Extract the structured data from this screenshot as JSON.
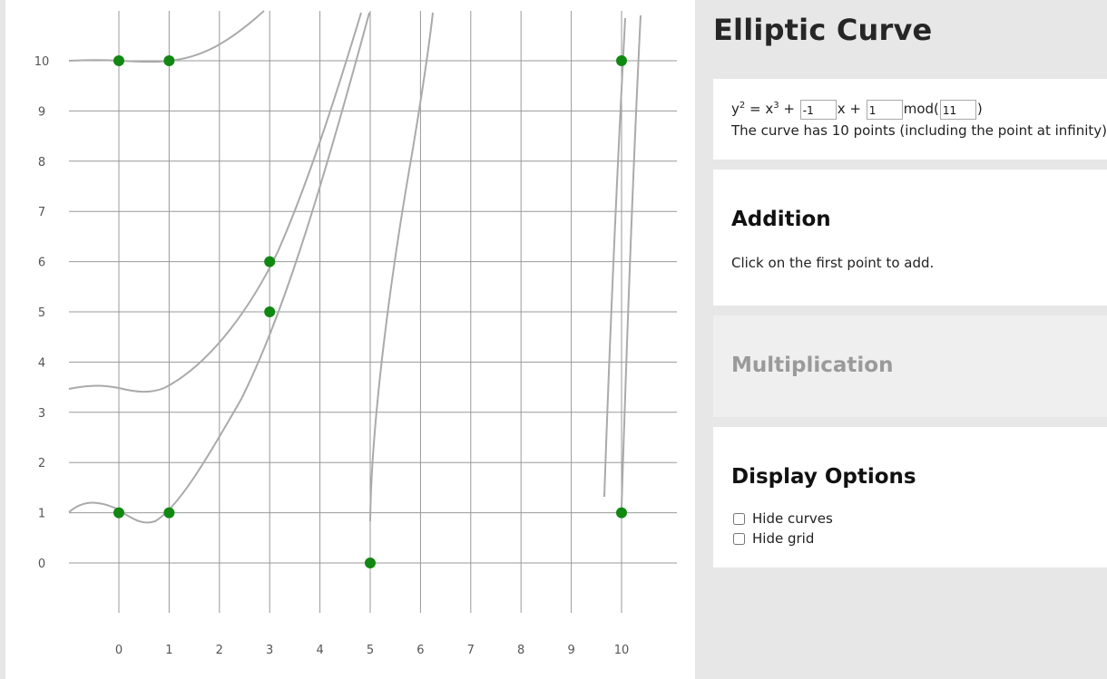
{
  "app": {
    "title": "Elliptic Curve"
  },
  "equation": {
    "lhs": "y",
    "lhs_exp": "2",
    "equals": " = x",
    "x_exp": "3",
    "plus1": " + ",
    "a_value": "-1",
    "x_plus": "x + ",
    "b_value": "1",
    "mod_open": "mod(",
    "p_value": "11",
    "mod_close": ")",
    "summary": "The curve has 10 points (including the point at infinity)."
  },
  "addition": {
    "title": "Addition",
    "hint": "Click on the first point to add."
  },
  "multiplication": {
    "title": "Multiplication"
  },
  "display_options": {
    "title": "Display Options",
    "hide_curves_label": "Hide curves",
    "hide_grid_label": "Hide grid",
    "hide_curves_checked": false,
    "hide_grid_checked": false
  },
  "plot": {
    "x_ticks": [
      "0",
      "1",
      "2",
      "3",
      "4",
      "5",
      "6",
      "7",
      "8",
      "9",
      "10"
    ],
    "y_ticks": [
      "0",
      "1",
      "2",
      "3",
      "4",
      "5",
      "6",
      "7",
      "8",
      "9",
      "10"
    ],
    "points": [
      {
        "x": 0,
        "y": 1
      },
      {
        "x": 0,
        "y": 10
      },
      {
        "x": 1,
        "y": 1
      },
      {
        "x": 1,
        "y": 10
      },
      {
        "x": 3,
        "y": 5
      },
      {
        "x": 3,
        "y": 6
      },
      {
        "x": 5,
        "y": 0
      },
      {
        "x": 10,
        "y": 1
      },
      {
        "x": 10,
        "y": 10
      }
    ],
    "point_color": "#118811",
    "grid_color": "#999999",
    "curve_color": "#aaaaaa"
  }
}
